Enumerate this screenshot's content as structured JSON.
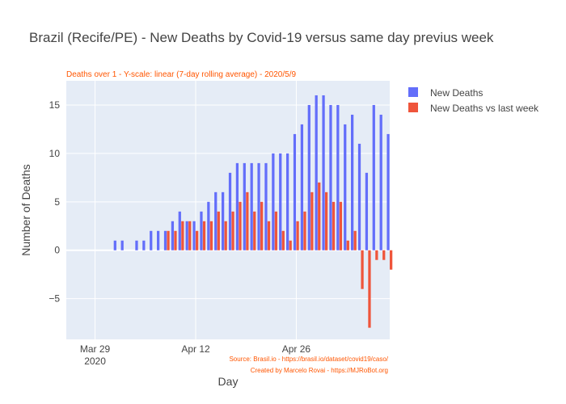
{
  "chart_data": {
    "type": "bar",
    "title": "Brazil (Recife/PE) - New Deaths by Covid-19 versus same day previus week",
    "subtitle": "Deaths over 1 - Y-scale: linear (7-day rolling average) - 2020/5/9",
    "xlabel": "Day",
    "ylabel": "Number of Deaths",
    "x_ticks": [
      {
        "date": "2020-03-29",
        "label": "Mar 29",
        "sublabel": "2020"
      },
      {
        "date": "2020-04-12",
        "label": "Apr 12",
        "sublabel": ""
      },
      {
        "date": "2020-04-26",
        "label": "Apr 26",
        "sublabel": ""
      }
    ],
    "y_ticks": [
      -5,
      0,
      5,
      10,
      15
    ],
    "xlim": [
      "2020-03-25",
      "2020-05-09"
    ],
    "ylim": [
      -9.2,
      17.5
    ],
    "grid": true,
    "legend_position": "top-right",
    "categories": [
      "2020-04-01",
      "2020-04-02",
      "2020-04-03",
      "2020-04-04",
      "2020-04-05",
      "2020-04-06",
      "2020-04-07",
      "2020-04-08",
      "2020-04-09",
      "2020-04-10",
      "2020-04-11",
      "2020-04-12",
      "2020-04-13",
      "2020-04-14",
      "2020-04-15",
      "2020-04-16",
      "2020-04-17",
      "2020-04-18",
      "2020-04-19",
      "2020-04-20",
      "2020-04-21",
      "2020-04-22",
      "2020-04-23",
      "2020-04-24",
      "2020-04-25",
      "2020-04-26",
      "2020-04-27",
      "2020-04-28",
      "2020-04-29",
      "2020-04-30",
      "2020-05-01",
      "2020-05-02",
      "2020-05-03",
      "2020-05-04",
      "2020-05-05",
      "2020-05-06",
      "2020-05-07",
      "2020-05-08",
      "2020-05-09"
    ],
    "series": [
      {
        "name": "New Deaths",
        "color": "#636efa",
        "values": [
          1,
          1,
          0,
          1,
          1,
          2,
          2,
          2,
          3,
          4,
          3,
          3,
          4,
          5,
          6,
          6,
          8,
          9,
          9,
          9,
          9,
          9,
          10,
          10,
          10,
          12,
          13,
          15,
          16,
          16,
          15,
          15,
          13,
          14,
          11,
          8,
          15,
          14,
          12
        ]
      },
      {
        "name": "New Deaths vs last week",
        "color": "#ef553b",
        "values": [
          null,
          null,
          null,
          null,
          null,
          null,
          null,
          2,
          2,
          3,
          3,
          2,
          3,
          3,
          4,
          3,
          4,
          5,
          6,
          4,
          5,
          3,
          4,
          2,
          1,
          3,
          4,
          6,
          7,
          6,
          5,
          5,
          1,
          2,
          -4,
          -8,
          -1,
          -1,
          -2
        ]
      }
    ],
    "credits": [
      "Source: Brasil.io - https://brasil.io/dataset/covid19/caso/",
      "Created by Marcelo Rovai - https://MJRoBot.org"
    ]
  }
}
